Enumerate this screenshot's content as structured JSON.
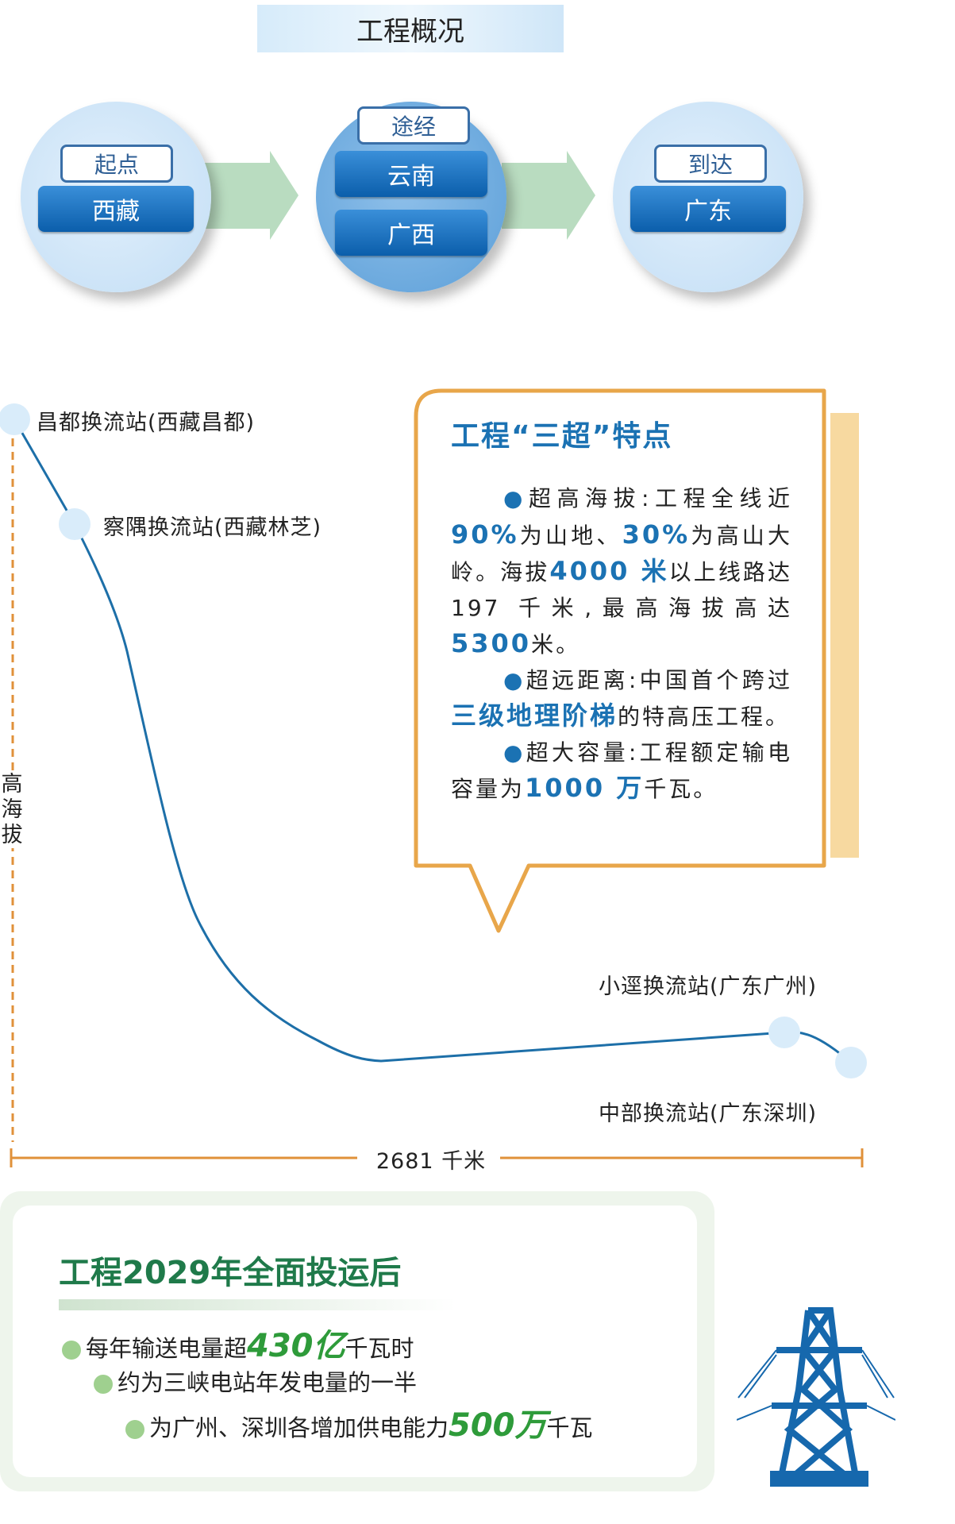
{
  "header": {
    "title": "工程概况"
  },
  "route": {
    "start": {
      "tag": "起点",
      "places": [
        "西藏"
      ]
    },
    "via": {
      "tag": "途经",
      "places": [
        "云南",
        "广西"
      ]
    },
    "end": {
      "tag": "到达",
      "places": [
        "广东"
      ]
    }
  },
  "profile": {
    "y_label": [
      "高",
      "海",
      "拔"
    ],
    "distance_label": "2681 千米",
    "stations": [
      {
        "name": "昌都换流站(西藏昌都)"
      },
      {
        "name": "察隅换流站(西藏林芝)"
      },
      {
        "name": "小逕换流站(广东广州)"
      },
      {
        "name": "中部换流站(广东深圳)"
      }
    ],
    "colors": {
      "line": "#1d6fa8",
      "dot": "#d9ecfa",
      "axis": "#e0913a"
    }
  },
  "callout": {
    "title": "工程“三超”特点",
    "p1": {
      "bullet": "●",
      "a": "超高海拔:工程全线近",
      "n1": "90%",
      "b": "为山地、",
      "n2": "30%",
      "c": "为高山大岭。海拔",
      "n3": "4000 米",
      "d": "以上线路达 197 千米,最高海拔高达",
      "n4": "5300",
      "e": "米。"
    },
    "p2": {
      "bullet": "●",
      "a": "超远距离:中国首个跨过",
      "n1": "三级地理阶梯",
      "b": "的特高压工程。"
    },
    "p3": {
      "bullet": "●",
      "a": "超大容量:工程额定输电容量为",
      "n1": "1000 万",
      "b": "千瓦。"
    },
    "colors": {
      "border": "#e8a64a",
      "highlight": "#1b72b3"
    }
  },
  "summary": {
    "title": "工程2029年全面投运后",
    "items": [
      {
        "pre": "每年输送电量超",
        "num": "430亿",
        "post": "千瓦时"
      },
      {
        "pre": "约为三峡电站年发电量的一半",
        "num": "",
        "post": ""
      },
      {
        "pre": "为广州、深圳各增加供电能力",
        "num": "500万",
        "post": "千瓦"
      }
    ],
    "colors": {
      "title": "#1f7a4a",
      "number": "#2e9b3a"
    }
  },
  "icons": {
    "tower": "transmission-tower-icon"
  }
}
